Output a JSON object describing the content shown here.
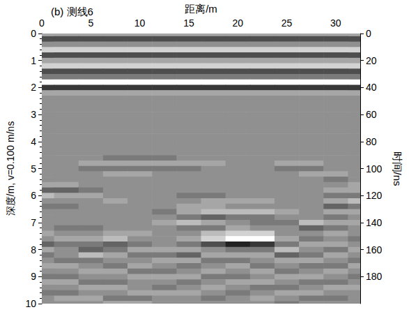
{
  "chart_data": {
    "type": "heatmap",
    "title": "(b) 测线6",
    "x_label": "距离/m",
    "y_label": "深度/m, v=0.100 m/ns",
    "y2_label": "时间/ns",
    "xlim": [
      0,
      32.5
    ],
    "xticks": [
      0,
      5,
      10,
      15,
      20,
      25,
      30
    ],
    "ylim": [
      0,
      10
    ],
    "yticks": [
      0,
      1,
      2,
      3,
      4,
      5,
      6,
      7,
      8,
      9,
      10
    ],
    "y2lim": [
      0,
      200
    ],
    "y2ticks": [
      0,
      20,
      40,
      60,
      80,
      100,
      120,
      140,
      160,
      180
    ],
    "grid": false,
    "zlim": [
      -5,
      5
    ],
    "x": [
      0,
      2.5,
      5,
      7.5,
      10,
      12.5,
      15,
      17.5,
      20,
      22.5,
      25,
      27.5,
      30,
      32.5
    ],
    "y": [
      0,
      0.2,
      0.4,
      0.6,
      0.8,
      1.0,
      1.2,
      1.4,
      1.6,
      1.8,
      2.0,
      2.2,
      2.4,
      2.6,
      2.8,
      3.0,
      3.2,
      3.4,
      3.6,
      3.8,
      4.0,
      4.2,
      4.4,
      4.6,
      4.8,
      5.0,
      5.2,
      5.4,
      5.6,
      5.8,
      6.0,
      6.2,
      6.4,
      6.6,
      6.8,
      7.0,
      7.2,
      7.4,
      7.6,
      7.8,
      8.0,
      8.2,
      8.4,
      8.6,
      8.8,
      9.0,
      9.2,
      9.4,
      9.6,
      9.8,
      10.0
    ],
    "z": [
      [
        1,
        1,
        1,
        1,
        1,
        1,
        1,
        1,
        1,
        1,
        1,
        1,
        1,
        1
      ],
      [
        -3,
        -3,
        -3,
        -3,
        -3,
        -3,
        -3,
        -3,
        -3,
        -3,
        -3,
        -3,
        -3,
        -3
      ],
      [
        0,
        0,
        0,
        0,
        0,
        0,
        0,
        0,
        0,
        0,
        0,
        0,
        0,
        0
      ],
      [
        3,
        3,
        3,
        3,
        3,
        3,
        3,
        3,
        3,
        3,
        3,
        3,
        3,
        3
      ],
      [
        -3,
        -3,
        -3,
        -3,
        -3,
        -3,
        -3,
        -3,
        -3,
        -3,
        -3,
        -3,
        -3,
        -3
      ],
      [
        1,
        1,
        1,
        1,
        1,
        1,
        1,
        1,
        1,
        1,
        1,
        1,
        1,
        1
      ],
      [
        3,
        3,
        3,
        3,
        3,
        3,
        3,
        3,
        3,
        3,
        3,
        3,
        3,
        3
      ],
      [
        -3,
        -3,
        -3,
        -3,
        -3,
        -3,
        -3,
        -3,
        -3,
        -3,
        -3,
        -3,
        -3,
        -3
      ],
      [
        -1,
        -1,
        -1,
        -1,
        -1,
        -1,
        -1,
        -1,
        -1,
        -1,
        -1,
        -1,
        -1,
        -1
      ],
      [
        5,
        5,
        5,
        5,
        5,
        5,
        5,
        5,
        5,
        5,
        5,
        5,
        5,
        5
      ],
      [
        -4,
        -4,
        -4,
        -4,
        -4,
        -4,
        -4,
        -4,
        -4,
        -4,
        -4,
        -4,
        -4,
        -4
      ],
      [
        1,
        1,
        1,
        1,
        1,
        1,
        1,
        1,
        1,
        1,
        1,
        1,
        1,
        1
      ],
      [
        0,
        0,
        0,
        0,
        0,
        0,
        0,
        0,
        0,
        0,
        0,
        0,
        0,
        0
      ],
      [
        0,
        0,
        0,
        0,
        0,
        0,
        0,
        0,
        0,
        0,
        0,
        0,
        0,
        0
      ],
      [
        0,
        0,
        0,
        0,
        0,
        0,
        0,
        0,
        0,
        0,
        0,
        0,
        0,
        0
      ],
      [
        0,
        0,
        0,
        0,
        0,
        0,
        0,
        0,
        0,
        0,
        0,
        0,
        0,
        0
      ],
      [
        0,
        0,
        0,
        0,
        0,
        0,
        0,
        0,
        0,
        0,
        0,
        0,
        0,
        0
      ],
      [
        0,
        0,
        0,
        0,
        0,
        0,
        0,
        0,
        0,
        0,
        0,
        0,
        0,
        0
      ],
      [
        0,
        0,
        0,
        0,
        0,
        0,
        0,
        0,
        0,
        0,
        0,
        0,
        0,
        0
      ],
      [
        0,
        0,
        0,
        0,
        0,
        0,
        0,
        0,
        0,
        0,
        0,
        0,
        0,
        0
      ],
      [
        0,
        0,
        0,
        0,
        0,
        0,
        0,
        0,
        0,
        0,
        0,
        0,
        0,
        0
      ],
      [
        0,
        0,
        0,
        0,
        0,
        0,
        0,
        0,
        0,
        0,
        0,
        0,
        0,
        0
      ],
      [
        0,
        0,
        0,
        0,
        0,
        0,
        0,
        0,
        0,
        0,
        0,
        0,
        0,
        0
      ],
      [
        0,
        0,
        0,
        -1,
        -1,
        -1,
        0,
        0,
        0,
        0,
        0,
        0,
        0,
        0
      ],
      [
        0,
        0,
        1,
        1,
        1,
        1,
        1,
        1,
        0,
        0,
        1,
        1,
        0,
        0
      ],
      [
        0,
        0,
        -1,
        -1,
        -1,
        -1,
        -1,
        0,
        0,
        0,
        -1,
        -1,
        0,
        0
      ],
      [
        0,
        0,
        0,
        1,
        1,
        0,
        0,
        0,
        0,
        0,
        0,
        1,
        1,
        0
      ],
      [
        0,
        0,
        0,
        0,
        0,
        0,
        0,
        0,
        0,
        0,
        0,
        0,
        -1,
        0
      ],
      [
        1,
        1,
        0,
        0,
        0,
        0,
        0,
        0,
        0,
        0,
        0,
        0,
        0,
        1
      ],
      [
        -2,
        -2,
        -1,
        0,
        0,
        0,
        0,
        0,
        0,
        0,
        0,
        0,
        1,
        1
      ],
      [
        2,
        1,
        1,
        0,
        0,
        0,
        -1,
        -1,
        0,
        0,
        0,
        0,
        -1,
        -1
      ],
      [
        0,
        0,
        0,
        1,
        0,
        0,
        0,
        1,
        1,
        1,
        0,
        0,
        1,
        2
      ],
      [
        -1,
        -1,
        0,
        0,
        0,
        0,
        1,
        1,
        0,
        0,
        0,
        0,
        -2,
        -1
      ],
      [
        0,
        0,
        0,
        0,
        0,
        -1,
        1,
        2,
        2,
        2,
        1,
        0,
        1,
        1
      ],
      [
        0,
        0,
        0,
        0,
        0,
        0,
        -1,
        -2,
        -1,
        -1,
        0,
        0,
        -1,
        0
      ],
      [
        0,
        0,
        0,
        0,
        0,
        1,
        2,
        1,
        0,
        -1,
        -1,
        2,
        1,
        1
      ],
      [
        0,
        -1,
        -1,
        0,
        0,
        0,
        -1,
        -1,
        1,
        0,
        0,
        -2,
        -1,
        0
      ],
      [
        1,
        0,
        0,
        1,
        1,
        0,
        0,
        2,
        3,
        3,
        0,
        0,
        1,
        0
      ],
      [
        0,
        1,
        1,
        2,
        0,
        0,
        1,
        3,
        5,
        5,
        1,
        -1,
        0,
        -1
      ],
      [
        -2,
        -1,
        -1,
        -2,
        -1,
        0,
        -1,
        -3,
        -5,
        -4,
        -1,
        1,
        1,
        0
      ],
      [
        1,
        0,
        -2,
        -1,
        1,
        1,
        1,
        0,
        -1,
        -1,
        2,
        0,
        -1,
        1
      ],
      [
        -1,
        0,
        2,
        1,
        -1,
        -1,
        -2,
        1,
        1,
        1,
        -2,
        -1,
        1,
        0
      ],
      [
        0,
        -1,
        -1,
        0,
        0,
        1,
        1,
        -1,
        -1,
        0,
        1,
        1,
        0,
        -1
      ],
      [
        1,
        1,
        0,
        -1,
        1,
        0,
        -1,
        0,
        1,
        -1,
        0,
        -1,
        -1,
        1
      ],
      [
        0,
        0,
        1,
        1,
        -1,
        -1,
        0,
        1,
        0,
        1,
        -1,
        0,
        1,
        0
      ],
      [
        -1,
        -1,
        0,
        0,
        1,
        1,
        1,
        -1,
        -1,
        0,
        1,
        1,
        0,
        -1
      ],
      [
        1,
        1,
        -1,
        -1,
        0,
        0,
        -1,
        0,
        1,
        1,
        0,
        -1,
        -1,
        0
      ],
      [
        0,
        0,
        1,
        1,
        0,
        -1,
        0,
        1,
        0,
        -1,
        -1,
        0,
        1,
        1
      ],
      [
        -1,
        -1,
        0,
        0,
        1,
        1,
        1,
        0,
        -1,
        0,
        1,
        1,
        0,
        0
      ],
      [
        0,
        1,
        1,
        -1,
        -1,
        0,
        0,
        -1,
        0,
        1,
        0,
        -1,
        -1,
        0
      ],
      [
        0,
        0,
        0,
        1,
        1,
        0,
        0,
        0,
        0,
        0,
        -1,
        0,
        0,
        0
      ]
    ]
  }
}
